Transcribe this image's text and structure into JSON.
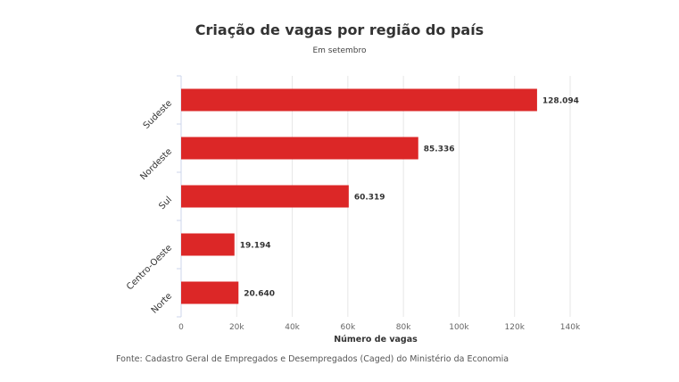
{
  "title": "Criação de vagas por região do país",
  "subtitle": "Em setembro",
  "source": "Fonte: Cadastro Geral de Empregados e Desempregados (Caged) do Ministério da Economia",
  "chart_data": {
    "type": "bar",
    "orientation": "horizontal",
    "categories": [
      "Sudeste",
      "Nordeste",
      "Sul",
      "Centro-Oeste",
      "Norte"
    ],
    "values": [
      128094,
      85336,
      60319,
      19194,
      20640
    ],
    "data_labels": [
      "128.094",
      "85.336",
      "60.319",
      "19.194",
      "20.640"
    ],
    "xlabel": "Número de vagas",
    "ylabel": "",
    "xlim": [
      0,
      140000
    ],
    "xticks": [
      0,
      20000,
      40000,
      60000,
      80000,
      100000,
      120000,
      140000
    ],
    "xtick_labels": [
      "0",
      "20k",
      "40k",
      "60k",
      "80k",
      "100k",
      "120k",
      "140k"
    ],
    "grid": true,
    "bar_color": "#dc2727"
  }
}
